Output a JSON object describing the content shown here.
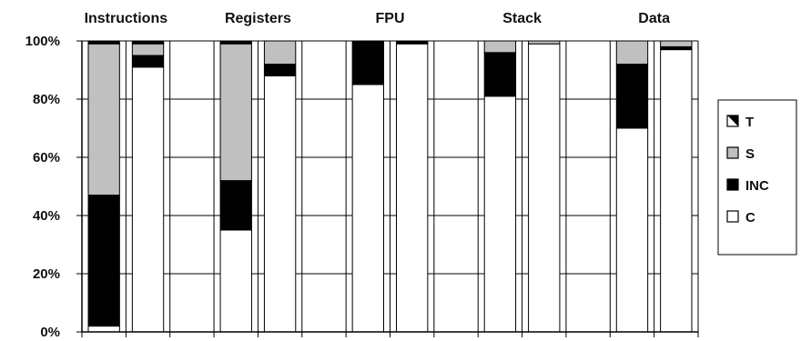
{
  "chart_data": {
    "type": "bar",
    "stacked": true,
    "percent_axis": true,
    "ylim": [
      0,
      100
    ],
    "y_ticks": [
      "0%",
      "20%",
      "40%",
      "60%",
      "80%",
      "100%"
    ],
    "grid": true,
    "legend_position": "right",
    "group_labels": [
      "Instructions",
      "Registers",
      "FPU",
      "Stack",
      "Data"
    ],
    "bars_per_group": 2,
    "series_order_bottom_to_top": [
      "C",
      "INC",
      "S",
      "T"
    ],
    "series": [
      {
        "name": "C",
        "color": "#ffffff",
        "values": [
          2,
          91,
          35,
          88,
          85,
          99,
          81,
          99,
          70,
          97
        ]
      },
      {
        "name": "INC",
        "color": "#000000",
        "values": [
          45,
          4,
          17,
          4,
          15,
          0.5,
          15,
          0,
          22,
          1
        ]
      },
      {
        "name": "S",
        "color": "#c0c0c0",
        "values": [
          52,
          4,
          47,
          8,
          0,
          0,
          4,
          1,
          8,
          2
        ]
      },
      {
        "name": "T",
        "color": "#000000",
        "values": [
          1,
          1,
          1,
          0,
          0,
          0.5,
          0,
          0,
          0,
          0
        ]
      }
    ],
    "legend": [
      {
        "label": "T",
        "swatch": "half-black"
      },
      {
        "label": "S",
        "swatch": "#c0c0c0"
      },
      {
        "label": "INC",
        "swatch": "#000000"
      },
      {
        "label": "C",
        "swatch": "#ffffff"
      }
    ]
  }
}
